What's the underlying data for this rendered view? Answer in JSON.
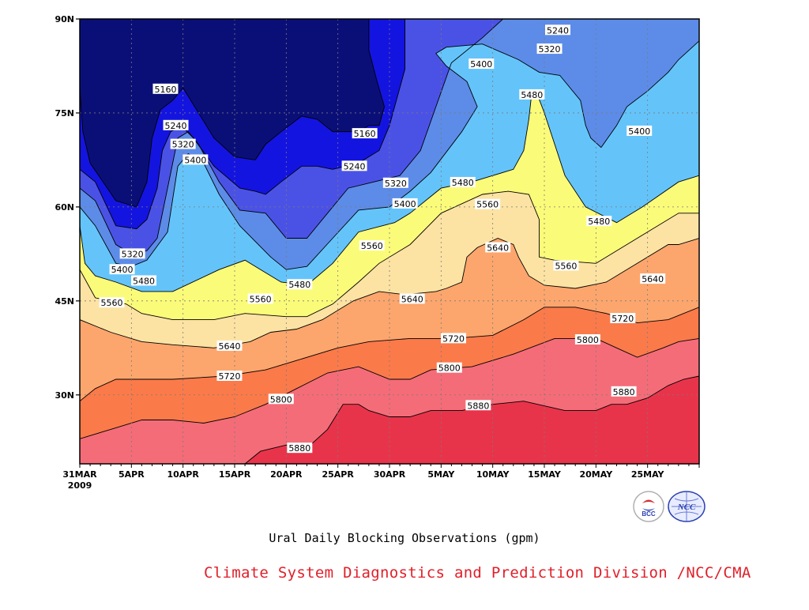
{
  "chart_data": {
    "type": "contour",
    "title": "Ural Daily Blocking Observations (gpm)",
    "xlabel": "",
    "ylabel": "",
    "x_dates": [
      "31MAR 2009",
      "5APR",
      "10APR",
      "15APR",
      "20APR",
      "25APR",
      "30APR",
      "5MAY",
      "10MAY",
      "15MAY",
      "20MAY",
      "25MAY"
    ],
    "x_range_days": [
      0,
      60
    ],
    "y_range_deg": [
      19,
      90
    ],
    "y_ticks": [
      "30N",
      "45N",
      "60N",
      "75N",
      "90N"
    ],
    "levels": [
      5160,
      5240,
      5320,
      5400,
      5480,
      5560,
      5640,
      5720,
      5800,
      5880
    ],
    "level_colors": [
      "#0a0f78",
      "#1414e0",
      "#4a52e6",
      "#5c8ce8",
      "#64c4fa",
      "#fbfb7a",
      "#fde3a3",
      "#fca66d",
      "#fb7a4a",
      "#f46c78",
      "#e8344a"
    ],
    "contours": [
      {
        "value": 5160,
        "points": [
          [
            0,
            79
          ],
          [
            0.3,
            72
          ],
          [
            1,
            67
          ],
          [
            3.5,
            61
          ],
          [
            5.5,
            60
          ],
          [
            6.5,
            64
          ],
          [
            7,
            71
          ],
          [
            7.8,
            75.5
          ],
          [
            9,
            77
          ],
          [
            10,
            79
          ],
          [
            13,
            71
          ],
          [
            15,
            68
          ],
          [
            17,
            67.5
          ],
          [
            18,
            70
          ],
          [
            19.5,
            72
          ],
          [
            21.5,
            74.5
          ],
          [
            23,
            74
          ],
          [
            24.5,
            72
          ],
          [
            27,
            72
          ],
          [
            28,
            73
          ],
          [
            29,
            73
          ],
          [
            29.5,
            76
          ],
          [
            28.8,
            80
          ],
          [
            28,
            85
          ],
          [
            28,
            90
          ]
        ]
      },
      {
        "value": 5240,
        "points": [
          [
            0,
            66
          ],
          [
            1.5,
            64
          ],
          [
            3.5,
            57
          ],
          [
            5.5,
            56.5
          ],
          [
            6.5,
            58
          ],
          [
            7.5,
            63
          ],
          [
            8,
            69
          ],
          [
            8.8,
            72
          ],
          [
            9.8,
            73
          ],
          [
            11,
            71
          ],
          [
            13,
            66.5
          ],
          [
            15.5,
            63
          ],
          [
            17,
            62.5
          ],
          [
            18,
            62
          ],
          [
            19.5,
            64
          ],
          [
            21.5,
            66.5
          ],
          [
            23,
            66.5
          ],
          [
            24.5,
            66
          ],
          [
            27,
            67
          ],
          [
            29,
            69
          ],
          [
            30,
            73
          ],
          [
            31.5,
            82
          ],
          [
            31.5,
            90
          ]
        ]
      },
      {
        "value": 5320,
        "points": [
          [
            0,
            63
          ],
          [
            1.5,
            61
          ],
          [
            3.5,
            54
          ],
          [
            5,
            52.5
          ],
          [
            6.5,
            53
          ],
          [
            7.5,
            55
          ],
          [
            8.5,
            63
          ],
          [
            9.5,
            71
          ],
          [
            10.5,
            72
          ],
          [
            11.5,
            70
          ],
          [
            13.5,
            64
          ],
          [
            15.5,
            59.5
          ],
          [
            18,
            59
          ],
          [
            20,
            55
          ],
          [
            22,
            55
          ],
          [
            24,
            59
          ],
          [
            26,
            63
          ],
          [
            28.5,
            64
          ],
          [
            31,
            65
          ],
          [
            33,
            69
          ],
          [
            34.5,
            76
          ],
          [
            36,
            83
          ],
          [
            39,
            87
          ],
          [
            41,
            90
          ]
        ]
      },
      {
        "value": 5400,
        "points": [
          [
            0,
            60
          ],
          [
            1.5,
            57
          ],
          [
            3.5,
            51
          ],
          [
            5,
            50.5
          ],
          [
            6.5,
            51.5
          ],
          [
            8.5,
            56
          ],
          [
            9.5,
            66.5
          ],
          [
            10.5,
            68.5
          ],
          [
            12,
            67
          ],
          [
            13.5,
            62
          ],
          [
            15.5,
            57
          ],
          [
            18.5,
            52
          ],
          [
            20,
            50
          ],
          [
            22,
            50.5
          ],
          [
            24.5,
            55
          ],
          [
            27,
            59.5
          ],
          [
            30,
            60
          ],
          [
            32,
            62.5
          ],
          [
            34,
            65.5
          ],
          [
            37,
            72
          ],
          [
            38.5,
            76
          ],
          [
            37.5,
            80
          ],
          [
            35.5,
            82.5
          ],
          [
            34.5,
            84.5
          ],
          [
            35.5,
            85.5
          ],
          [
            39,
            86
          ],
          [
            42.5,
            83.5
          ],
          [
            44.5,
            81.5
          ],
          [
            46.5,
            81
          ],
          [
            48.5,
            77
          ],
          [
            49,
            73
          ],
          [
            49.5,
            71
          ],
          [
            50.5,
            69.5
          ],
          [
            52,
            73
          ],
          [
            53,
            76
          ],
          [
            55,
            78.5
          ],
          [
            57,
            81.5
          ],
          [
            58,
            83.5
          ],
          [
            60,
            86.5
          ]
        ]
      },
      {
        "value": 5480,
        "points": [
          [
            0,
            57
          ],
          [
            0.5,
            51
          ],
          [
            1.5,
            49
          ],
          [
            3.5,
            48
          ],
          [
            6,
            46.5
          ],
          [
            9,
            46.5
          ],
          [
            13.5,
            50
          ],
          [
            16,
            51.5
          ],
          [
            18,
            49.5
          ],
          [
            19.5,
            48
          ],
          [
            22,
            47.5
          ],
          [
            24.5,
            51
          ],
          [
            27,
            56
          ],
          [
            30.5,
            57.5
          ],
          [
            32,
            59
          ],
          [
            35,
            63
          ],
          [
            38,
            64
          ],
          [
            40,
            65
          ],
          [
            42,
            66
          ],
          [
            43,
            69
          ],
          [
            43.5,
            74
          ],
          [
            43.8,
            78.5
          ],
          [
            44.2,
            78.5
          ],
          [
            45,
            75
          ],
          [
            46,
            70
          ],
          [
            47,
            65
          ],
          [
            49,
            60
          ],
          [
            52,
            57.5
          ],
          [
            54.5,
            60
          ],
          [
            58,
            64
          ],
          [
            60,
            65
          ]
        ]
      },
      {
        "value": 5560,
        "points": [
          [
            0,
            50
          ],
          [
            1.5,
            45.5
          ],
          [
            4.5,
            44.5
          ],
          [
            6,
            43
          ],
          [
            9,
            42
          ],
          [
            13,
            42
          ],
          [
            16,
            43
          ],
          [
            20,
            42.5
          ],
          [
            22,
            42.5
          ],
          [
            24.5,
            44.5
          ],
          [
            27,
            48
          ],
          [
            29,
            51
          ],
          [
            32,
            54
          ],
          [
            35,
            59
          ],
          [
            39,
            62
          ],
          [
            41.5,
            62.5
          ],
          [
            43.5,
            62
          ],
          [
            44.5,
            58
          ],
          [
            44.5,
            52
          ],
          [
            46,
            51.5
          ],
          [
            50,
            51
          ],
          [
            54,
            55
          ],
          [
            58,
            59
          ],
          [
            60,
            59
          ]
        ]
      },
      {
        "value": 5640,
        "points": [
          [
            0,
            42
          ],
          [
            3,
            40
          ],
          [
            6,
            38.5
          ],
          [
            9,
            38
          ],
          [
            13,
            37.5
          ],
          [
            16.5,
            38.5
          ],
          [
            18.5,
            40
          ],
          [
            21,
            40.5
          ],
          [
            23.5,
            42
          ],
          [
            26.5,
            45
          ],
          [
            29,
            46.5
          ],
          [
            31.5,
            46
          ],
          [
            34.5,
            46.5
          ],
          [
            35.5,
            47
          ],
          [
            37,
            48
          ],
          [
            37.5,
            52
          ],
          [
            38.5,
            53.5
          ],
          [
            40.5,
            55
          ],
          [
            42,
            54
          ],
          [
            42.5,
            52
          ],
          [
            43.5,
            49
          ],
          [
            45,
            47.5
          ],
          [
            48,
            47
          ],
          [
            51,
            48
          ],
          [
            54,
            51
          ],
          [
            57,
            54
          ],
          [
            58,
            54
          ],
          [
            60,
            55
          ]
        ]
      },
      {
        "value": 5720,
        "points": [
          [
            0,
            29
          ],
          [
            1.5,
            31
          ],
          [
            3.5,
            32.5
          ],
          [
            6,
            32.5
          ],
          [
            9,
            32.5
          ],
          [
            14,
            33
          ],
          [
            18,
            34
          ],
          [
            21,
            35.5
          ],
          [
            25,
            37.5
          ],
          [
            28,
            38.5
          ],
          [
            32,
            39
          ],
          [
            36,
            39
          ],
          [
            40,
            39.5
          ],
          [
            43,
            42
          ],
          [
            45,
            44
          ],
          [
            48,
            44
          ],
          [
            51,
            43
          ],
          [
            54,
            41.5
          ],
          [
            57,
            42
          ],
          [
            60,
            44
          ]
        ]
      },
      {
        "value": 5800,
        "points": [
          [
            0,
            23
          ],
          [
            3,
            24.5
          ],
          [
            6,
            26
          ],
          [
            9,
            26
          ],
          [
            12,
            25.5
          ],
          [
            15,
            26.5
          ],
          [
            18,
            28.5
          ],
          [
            21,
            31
          ],
          [
            24,
            33.5
          ],
          [
            27,
            34.5
          ],
          [
            30,
            32.5
          ],
          [
            32,
            32.5
          ],
          [
            34,
            34
          ],
          [
            38,
            34.5
          ],
          [
            42,
            36.5
          ],
          [
            46,
            39
          ],
          [
            50,
            39
          ],
          [
            52,
            37.5
          ],
          [
            54,
            36
          ],
          [
            56.5,
            37.5
          ],
          [
            58,
            38.5
          ],
          [
            60,
            39
          ]
        ]
      },
      {
        "value": 5880,
        "points": [
          [
            16,
            19
          ],
          [
            17.5,
            21
          ],
          [
            20,
            22
          ],
          [
            22,
            21.5
          ],
          [
            24,
            24.5
          ],
          [
            25.5,
            28.5
          ],
          [
            27,
            28.5
          ],
          [
            28,
            27.5
          ],
          [
            30,
            26.5
          ],
          [
            32,
            26.5
          ],
          [
            34,
            27.5
          ],
          [
            37,
            27.5
          ],
          [
            40,
            28.5
          ],
          [
            43,
            29
          ],
          [
            47,
            27.5
          ],
          [
            50,
            27.5
          ],
          [
            51.5,
            28.5
          ],
          [
            53,
            28.5
          ],
          [
            55,
            29.5
          ],
          [
            57,
            31.5
          ],
          [
            58.5,
            32.5
          ],
          [
            60,
            33
          ]
        ]
      }
    ],
    "contour_labels": [
      {
        "text": "5160",
        "day": 8.3,
        "lat": 78.8
      },
      {
        "text": "5160",
        "day": 27.6,
        "lat": 71.7
      },
      {
        "text": "5240",
        "day": 9.3,
        "lat": 73
      },
      {
        "text": "5240",
        "day": 26.6,
        "lat": 66.5
      },
      {
        "text": "5240",
        "day": 46.3,
        "lat": 88.2
      },
      {
        "text": "5320",
        "day": 10,
        "lat": 70
      },
      {
        "text": "5320",
        "day": 30.6,
        "lat": 63.8
      },
      {
        "text": "5320",
        "day": 45.5,
        "lat": 85.2
      },
      {
        "text": "5320",
        "day": 5.1,
        "lat": 52.5
      },
      {
        "text": "5400",
        "day": 11.2,
        "lat": 67.5
      },
      {
        "text": "5400",
        "day": 31.5,
        "lat": 60.5
      },
      {
        "text": "5400",
        "day": 38.9,
        "lat": 82.8
      },
      {
        "text": "5400",
        "day": 54.2,
        "lat": 72.1
      },
      {
        "text": "5400",
        "day": 4.1,
        "lat": 50
      },
      {
        "text": "5480",
        "day": 6.2,
        "lat": 48.2
      },
      {
        "text": "5480",
        "day": 21.3,
        "lat": 47.6
      },
      {
        "text": "5480",
        "day": 37.1,
        "lat": 63.9
      },
      {
        "text": "5480",
        "day": 43.8,
        "lat": 77.9
      },
      {
        "text": "5480",
        "day": 50.3,
        "lat": 57.7
      },
      {
        "text": "5560",
        "day": 3.1,
        "lat": 44.7
      },
      {
        "text": "5560",
        "day": 17.5,
        "lat": 45.3
      },
      {
        "text": "5560",
        "day": 28.3,
        "lat": 53.8
      },
      {
        "text": "5560",
        "day": 39.5,
        "lat": 60.4
      },
      {
        "text": "5560",
        "day": 47.1,
        "lat": 50.6
      },
      {
        "text": "5640",
        "day": 14.5,
        "lat": 37.8
      },
      {
        "text": "5640",
        "day": 32.2,
        "lat": 45.3
      },
      {
        "text": "5640",
        "day": 40.5,
        "lat": 53.5
      },
      {
        "text": "5640",
        "day": 55.5,
        "lat": 48.5
      },
      {
        "text": "5720",
        "day": 14.5,
        "lat": 33
      },
      {
        "text": "5720",
        "day": 36.2,
        "lat": 39
      },
      {
        "text": "5720",
        "day": 52.6,
        "lat": 42.2
      },
      {
        "text": "5800",
        "day": 19.5,
        "lat": 29.3
      },
      {
        "text": "5800",
        "day": 35.8,
        "lat": 34.3
      },
      {
        "text": "5800",
        "day": 49.2,
        "lat": 38.8
      },
      {
        "text": "5880",
        "day": 21.3,
        "lat": 21.5
      },
      {
        "text": "5880",
        "day": 38.6,
        "lat": 28.3
      },
      {
        "text": "5880",
        "day": 52.7,
        "lat": 30.5
      }
    ],
    "grid": true,
    "legend": "none"
  },
  "footer": {
    "credit": "Climate System Diagnostics and Prediction Division /NCC/CMA"
  },
  "logos": {
    "left": {
      "icon": "bcc-logo-icon",
      "text": "BCC",
      "color": "#d43030"
    },
    "right": {
      "icon": "ncc-logo-icon",
      "text": "NCC",
      "color": "#2a3fb0"
    }
  }
}
